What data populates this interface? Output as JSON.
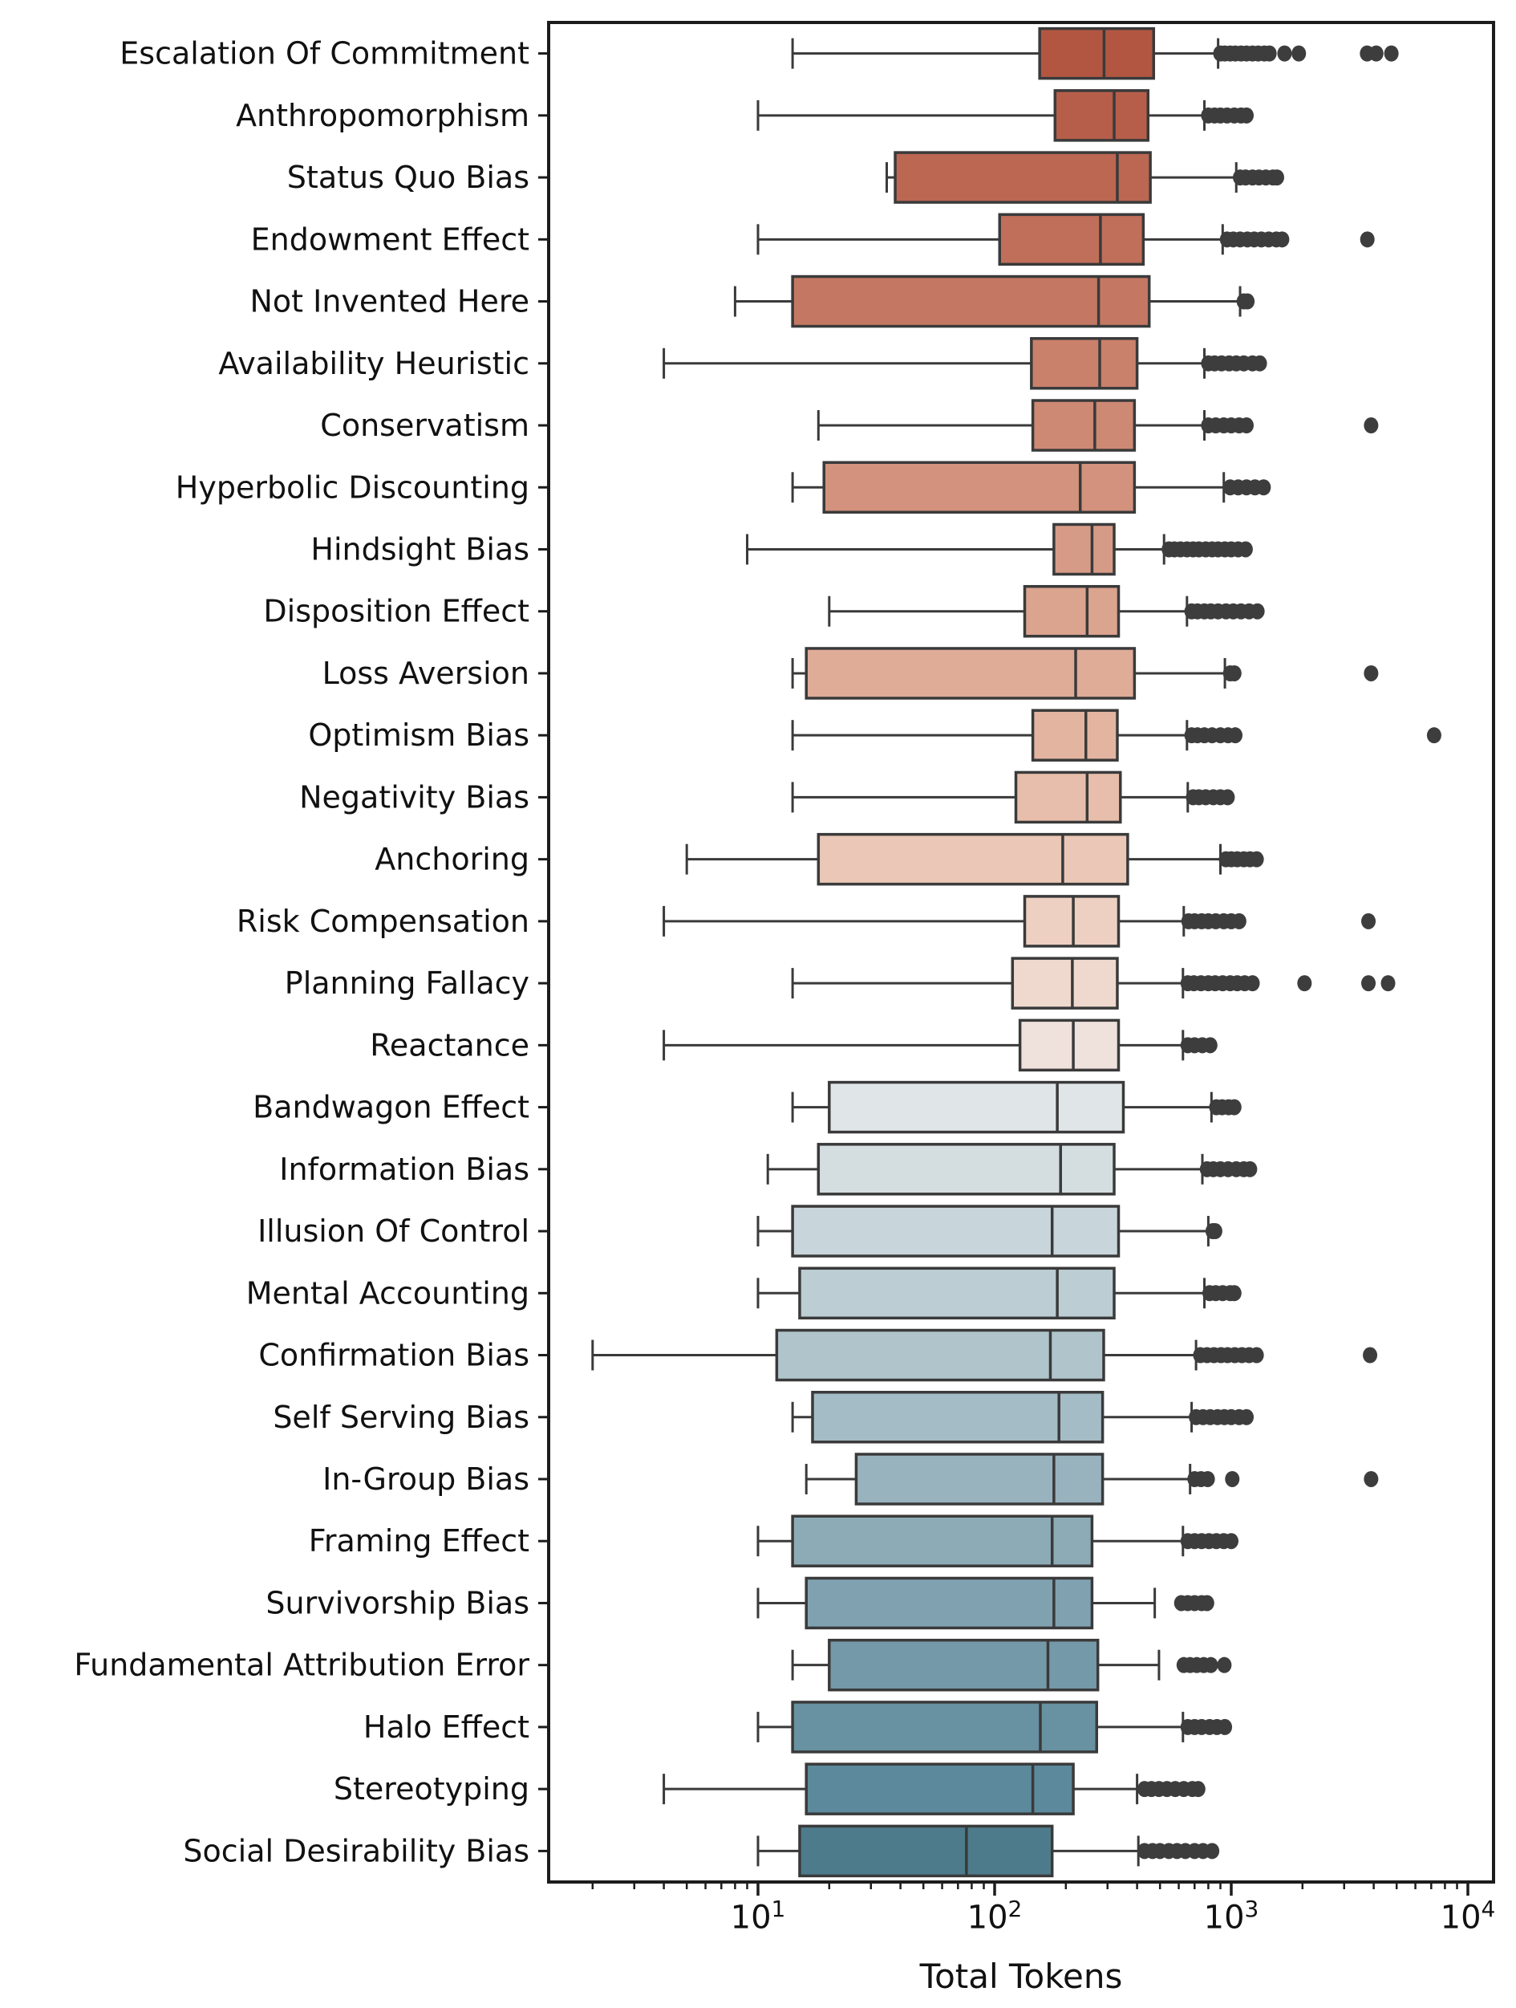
{
  "chart_data": {
    "type": "boxplot",
    "orientation": "horizontal",
    "title": "",
    "xlabel": "Total Tokens",
    "ylabel": "",
    "x_scale": "log",
    "x_tick_exponents": [
      1,
      2,
      3,
      4
    ],
    "xlim": [
      1.3,
      14000
    ],
    "grid": false,
    "colors": {
      "box_edge": "#3a3a3a",
      "whisker": "#3a3a3a",
      "median": "#3a3a3a",
      "outlier": "#3d3d3d",
      "axis": "#1c1c1c",
      "text": "#111111"
    },
    "rows": [
      {
        "label": "Escalation Of Commitment",
        "color": "#B25642",
        "whisker_low": 14,
        "q1": 155,
        "median": 290,
        "q3": 470,
        "whisker_high": 880,
        "outliers": [
          900,
          940,
          990,
          1040,
          1100,
          1160,
          1230,
          1300,
          1380,
          1450,
          1680,
          1930,
          3750,
          4100,
          4750
        ]
      },
      {
        "label": "Anthropomorphism",
        "color": "#B65E4A",
        "whisker_low": 10,
        "q1": 180,
        "median": 320,
        "q3": 445,
        "whisker_high": 770,
        "outliers": [
          800,
          850,
          900,
          960,
          1030,
          1100,
          1160
        ]
      },
      {
        "label": "Status Quo Bias",
        "color": "#BB6752",
        "whisker_low": 35,
        "q1": 38,
        "median": 330,
        "q3": 455,
        "whisker_high": 1050,
        "outliers": [
          1090,
          1150,
          1230,
          1310,
          1400,
          1500,
          1560
        ]
      },
      {
        "label": "Endowment Effect",
        "color": "#C06F5B",
        "whisker_low": 10,
        "q1": 105,
        "median": 280,
        "q3": 425,
        "whisker_high": 920,
        "outliers": [
          960,
          1020,
          1090,
          1170,
          1250,
          1340,
          1440,
          1550,
          1640,
          3760
        ]
      },
      {
        "label": "Not Invented Here",
        "color": "#C47863",
        "whisker_low": 8,
        "q1": 14,
        "median": 275,
        "q3": 450,
        "whisker_high": 1090,
        "outliers": [
          1130,
          1170
        ]
      },
      {
        "label": "Availability Heuristic",
        "color": "#C9816C",
        "whisker_low": 4,
        "q1": 143,
        "median": 278,
        "q3": 400,
        "whisker_high": 770,
        "outliers": [
          800,
          850,
          910,
          980,
          1050,
          1130,
          1230,
          1320
        ]
      },
      {
        "label": "Conservatism",
        "color": "#CD8974",
        "whisker_low": 18,
        "q1": 145,
        "median": 265,
        "q3": 390,
        "whisker_high": 770,
        "outliers": [
          800,
          860,
          930,
          1000,
          1080,
          1160,
          3900
        ]
      },
      {
        "label": "Hyperbolic Discounting",
        "color": "#D2927D",
        "whisker_low": 14,
        "q1": 19,
        "median": 230,
        "q3": 390,
        "whisker_high": 930,
        "outliers": [
          990,
          1070,
          1160,
          1260,
          1370
        ]
      },
      {
        "label": "Hindsight Bias",
        "color": "#D69B86",
        "whisker_low": 9,
        "q1": 178,
        "median": 258,
        "q3": 320,
        "whisker_high": 520,
        "outliers": [
          545,
          575,
          610,
          650,
          690,
          730,
          780,
          830,
          880,
          940,
          1000,
          1070,
          1150
        ]
      },
      {
        "label": "Disposition Effect",
        "color": "#DBA48F",
        "whisker_low": 20,
        "q1": 134,
        "median": 246,
        "q3": 334,
        "whisker_high": 650,
        "outliers": [
          680,
          720,
          770,
          820,
          880,
          950,
          1020,
          1100,
          1190,
          1290
        ]
      },
      {
        "label": "Loss Aversion",
        "color": "#DFAC98",
        "whisker_low": 14,
        "q1": 16,
        "median": 220,
        "q3": 390,
        "whisker_high": 940,
        "outliers": [
          990,
          1030,
          3900
        ]
      },
      {
        "label": "Optimism Bias",
        "color": "#E3B5A1",
        "whisker_low": 14,
        "q1": 145,
        "median": 243,
        "q3": 330,
        "whisker_high": 650,
        "outliers": [
          680,
          720,
          770,
          830,
          900,
          970,
          1040,
          7200
        ]
      },
      {
        "label": "Negativity Bias",
        "color": "#E7BEAB",
        "whisker_low": 14,
        "q1": 123,
        "median": 246,
        "q3": 340,
        "whisker_high": 655,
        "outliers": [
          690,
          730,
          780,
          840,
          900,
          965
        ]
      },
      {
        "label": "Anchoring",
        "color": "#EAC7B6",
        "whisker_low": 5,
        "q1": 18,
        "median": 194,
        "q3": 365,
        "whisker_high": 900,
        "outliers": [
          950,
          1000,
          1060,
          1130,
          1200,
          1280
        ]
      },
      {
        "label": "Risk Compensation",
        "color": "#EDD0C2",
        "whisker_low": 4,
        "q1": 134,
        "median": 215,
        "q3": 334,
        "whisker_high": 630,
        "outliers": [
          660,
          700,
          750,
          800,
          860,
          930,
          1000,
          1080,
          3800
        ]
      },
      {
        "label": "Planning Fallacy",
        "color": "#EFD9CE",
        "whisker_low": 14,
        "q1": 119,
        "median": 213,
        "q3": 330,
        "whisker_high": 625,
        "outliers": [
          655,
          695,
          745,
          800,
          855,
          920,
          990,
          1060,
          1140,
          1230,
          2040,
          3800,
          4600
        ]
      },
      {
        "label": "Reactance",
        "color": "#EFE1DC",
        "whisker_low": 4,
        "q1": 128,
        "median": 215,
        "q3": 334,
        "whisker_high": 625,
        "outliers": [
          655,
          700,
          755,
          815
        ]
      },
      {
        "label": "Bandwagon Effect",
        "color": "#E0E6E7",
        "whisker_low": 14,
        "q1": 20,
        "median": 184,
        "q3": 350,
        "whisker_high": 825,
        "outliers": [
          865,
          915,
          975,
          1030
        ]
      },
      {
        "label": "Information Bias",
        "color": "#D4DEE1",
        "whisker_low": 11,
        "q1": 18,
        "median": 190,
        "q3": 320,
        "whisker_high": 755,
        "outliers": [
          790,
          840,
          900,
          970,
          1050,
          1130,
          1200
        ]
      },
      {
        "label": "Illusion Of Control",
        "color": "#C8D5DA",
        "whisker_low": 10,
        "q1": 14,
        "median": 175,
        "q3": 334,
        "whisker_high": 800,
        "outliers": [
          835,
          855
        ]
      },
      {
        "label": "Mental Accounting",
        "color": "#BCCDD3",
        "whisker_low": 10,
        "q1": 15,
        "median": 184,
        "q3": 320,
        "whisker_high": 770,
        "outliers": [
          810,
          860,
          920,
          990,
          1030
        ]
      },
      {
        "label": "Confirmation Bias",
        "color": "#B0C4CC",
        "whisker_low": 2,
        "q1": 12,
        "median": 172,
        "q3": 289,
        "whisker_high": 710,
        "outliers": [
          740,
          790,
          845,
          905,
          965,
          1035,
          1110,
          1190,
          1280,
          3860
        ]
      },
      {
        "label": "Self Serving Bias",
        "color": "#A4BCC5",
        "whisker_low": 14,
        "q1": 17,
        "median": 187,
        "q3": 286,
        "whisker_high": 680,
        "outliers": [
          710,
          760,
          815,
          875,
          935,
          1000,
          1080,
          1160
        ]
      },
      {
        "label": "In-Group Bias",
        "color": "#98B3BE",
        "whisker_low": 16,
        "q1": 26,
        "median": 178,
        "q3": 286,
        "whisker_high": 670,
        "outliers": [
          700,
          745,
          795,
          1010,
          3900
        ]
      },
      {
        "label": "Framing Effect",
        "color": "#8CABB7",
        "whisker_low": 10,
        "q1": 14,
        "median": 175,
        "q3": 258,
        "whisker_high": 625,
        "outliers": [
          655,
          700,
          750,
          805,
          865,
          930,
          1000
        ]
      },
      {
        "label": "Survivorship Bias",
        "color": "#80A2B0",
        "whisker_low": 10,
        "q1": 16,
        "median": 178,
        "q3": 258,
        "whisker_high": 475,
        "outliers": [
          615,
          655,
          700,
          750,
          790
        ]
      },
      {
        "label": "Fundamental Attribution Error",
        "color": "#749AA9",
        "whisker_low": 14,
        "q1": 20,
        "median": 168,
        "q3": 273,
        "whisker_high": 495,
        "outliers": [
          630,
          670,
          715,
          765,
          820,
          935
        ]
      },
      {
        "label": "Halo Effect",
        "color": "#6891A2",
        "whisker_low": 10,
        "q1": 14,
        "median": 156,
        "q3": 270,
        "whisker_high": 625,
        "outliers": [
          655,
          700,
          750,
          810,
          870,
          940
        ]
      },
      {
        "label": "Stereotyping",
        "color": "#5C899B",
        "whisker_low": 4,
        "q1": 16,
        "median": 145,
        "q3": 215,
        "whisker_high": 400,
        "outliers": [
          430,
          460,
          495,
          535,
          580,
          630,
          685,
          725
        ]
      },
      {
        "label": "Social Desirability Bias",
        "color": "#4D7B8B",
        "whisker_low": 10,
        "q1": 15,
        "median": 76,
        "q3": 175,
        "whisker_high": 405,
        "outliers": [
          430,
          465,
          500,
          545,
          590,
          640,
          700,
          760,
          830
        ]
      }
    ]
  }
}
